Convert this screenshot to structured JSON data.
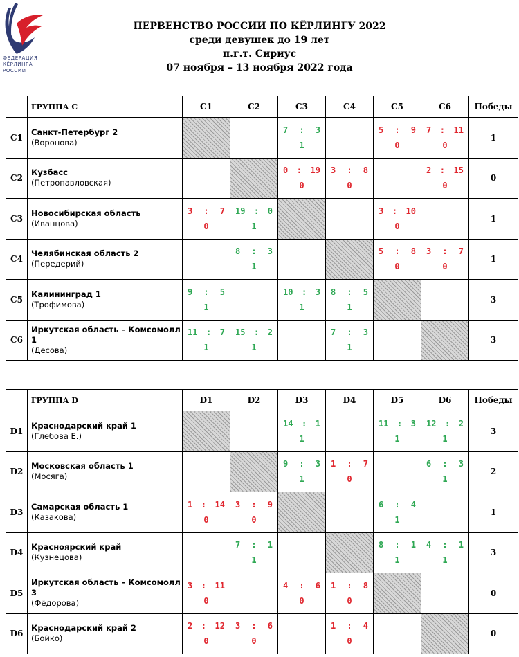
{
  "logo": {
    "lines": [
      "ФЕДЕРАЦИЯ",
      "КЁРЛИНГА",
      "РОССИИ"
    ],
    "colors": {
      "blue": "#2e3a72",
      "red": "#d71f2b"
    }
  },
  "header": {
    "line1": "ПЕРВЕНСТВО РОССИИ ПО КЁРЛИНГУ 2022",
    "line2": "среди девушек до 19 лет",
    "line3": "п.г.т. Сириус",
    "line4": "07 ноября – 13 ноября 2022 года"
  },
  "colors": {
    "win": "#2fa854",
    "loss": "#e0262e"
  },
  "groups": [
    {
      "title": "ГРУППА C",
      "columns": [
        "C1",
        "C2",
        "C3",
        "C4",
        "C5",
        "C6"
      ],
      "wins_label": "Победы",
      "rows": [
        {
          "id": "C1",
          "team": "Санкт-Петербург 2",
          "skip": "(Воронова)",
          "wins": "1",
          "cells": [
            null,
            null,
            {
              "a": "7",
              "b": "3",
              "p": "1"
            },
            null,
            {
              "a": "5",
              "b": "9",
              "p": "0"
            },
            {
              "a": "7",
              "b": "11",
              "p": "0"
            }
          ]
        },
        {
          "id": "C2",
          "team": "Кузбасс",
          "skip": "(Петропавловская)",
          "wins": "0",
          "cells": [
            null,
            null,
            {
              "a": "0",
              "b": "19",
              "p": "0"
            },
            {
              "a": "3",
              "b": "8",
              "p": "0"
            },
            null,
            {
              "a": "2",
              "b": "15",
              "p": "0"
            }
          ]
        },
        {
          "id": "C3",
          "team": "Новосибирская область",
          "skip": "(Иванцова)",
          "wins": "1",
          "cells": [
            {
              "a": "3",
              "b": "7",
              "p": "0"
            },
            {
              "a": "19",
              "b": "0",
              "p": "1"
            },
            null,
            null,
            {
              "a": "3",
              "b": "10",
              "p": "0"
            },
            null
          ]
        },
        {
          "id": "C4",
          "team": "Челябинская область 2",
          "skip": "(Передерий)",
          "wins": "1",
          "cells": [
            null,
            {
              "a": "8",
              "b": "3",
              "p": "1"
            },
            null,
            null,
            {
              "a": "5",
              "b": "8",
              "p": "0"
            },
            {
              "a": "3",
              "b": "7",
              "p": "0"
            }
          ]
        },
        {
          "id": "C5",
          "team": "Калининград 1",
          "skip": "(Трофимова)",
          "wins": "3",
          "cells": [
            {
              "a": "9",
              "b": "5",
              "p": "1"
            },
            null,
            {
              "a": "10",
              "b": "3",
              "p": "1"
            },
            {
              "a": "8",
              "b": "5",
              "p": "1"
            },
            null,
            null
          ]
        },
        {
          "id": "C6",
          "team": "Иркутская область – Комсомолл 1",
          "skip": "(Десова)",
          "wins": "3",
          "cells": [
            {
              "a": "11",
              "b": "7",
              "p": "1"
            },
            {
              "a": "15",
              "b": "2",
              "p": "1"
            },
            null,
            {
              "a": "7",
              "b": "3",
              "p": "1"
            },
            null,
            null
          ]
        }
      ]
    },
    {
      "title": "ГРУППА D",
      "columns": [
        "D1",
        "D2",
        "D3",
        "D4",
        "D5",
        "D6"
      ],
      "wins_label": "Победы",
      "rows": [
        {
          "id": "D1",
          "team": "Краснодарский край 1",
          "skip": "(Глебова Е.)",
          "wins": "3",
          "cells": [
            null,
            null,
            {
              "a": "14",
              "b": "1",
              "p": "1"
            },
            null,
            {
              "a": "11",
              "b": "3",
              "p": "1"
            },
            {
              "a": "12",
              "b": "2",
              "p": "1"
            }
          ]
        },
        {
          "id": "D2",
          "team": "Московская область 1",
          "skip": "(Мосяга)",
          "wins": "2",
          "cells": [
            null,
            null,
            {
              "a": "9",
              "b": "3",
              "p": "1"
            },
            {
              "a": "1",
              "b": "7",
              "p": "0"
            },
            null,
            {
              "a": "6",
              "b": "3",
              "p": "1"
            }
          ]
        },
        {
          "id": "D3",
          "team": "Самарская область 1",
          "skip": "(Казакова)",
          "wins": "1",
          "cells": [
            {
              "a": "1",
              "b": "14",
              "p": "0"
            },
            {
              "a": "3",
              "b": "9",
              "p": "0"
            },
            null,
            null,
            {
              "a": "6",
              "b": "4",
              "p": "1"
            },
            null
          ]
        },
        {
          "id": "D4",
          "team": "Красноярский край",
          "skip": "(Кузнецова)",
          "wins": "3",
          "cells": [
            null,
            {
              "a": "7",
              "b": "1",
              "p": "1"
            },
            null,
            null,
            {
              "a": "8",
              "b": "1",
              "p": "1"
            },
            {
              "a": "4",
              "b": "1",
              "p": "1"
            }
          ]
        },
        {
          "id": "D5",
          "team": "Иркутская область – Комсомолл 3",
          "skip": "(Фёдорова)",
          "wins": "0",
          "cells": [
            {
              "a": "3",
              "b": "11",
              "p": "0"
            },
            null,
            {
              "a": "4",
              "b": "6",
              "p": "0"
            },
            {
              "a": "1",
              "b": "8",
              "p": "0"
            },
            null,
            null
          ]
        },
        {
          "id": "D6",
          "team": "Краснодарский край 2",
          "skip": "(Бойко)",
          "wins": "0",
          "cells": [
            {
              "a": "2",
              "b": "12",
              "p": "0"
            },
            {
              "a": "3",
              "b": "6",
              "p": "0"
            },
            null,
            {
              "a": "1",
              "b": "4",
              "p": "0"
            },
            null,
            null
          ]
        }
      ]
    }
  ]
}
